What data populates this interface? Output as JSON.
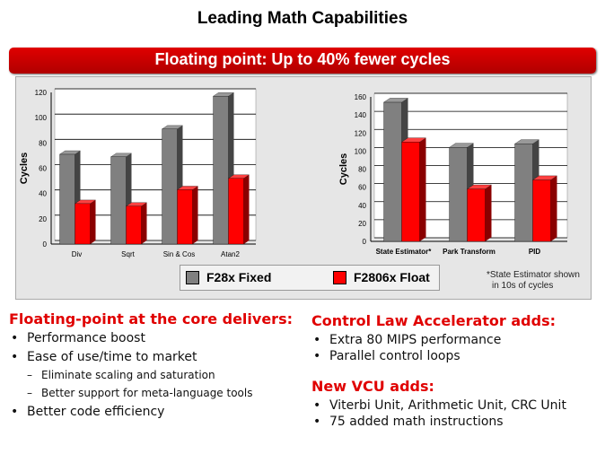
{
  "title": "Leading Math Capabilities",
  "banner": "Floating point:  Up to 40% fewer cycles",
  "legend": {
    "fixed": "F28x Fixed",
    "float": "F2806x Float"
  },
  "colors": {
    "fixed": "#808080",
    "float": "#ff0000",
    "accent": "#e00000"
  },
  "footnote": [
    "*State Estimator shown",
    "in 10s of cycles"
  ],
  "chart_data": [
    {
      "type": "bar",
      "ylabel": "Cycles",
      "ylim": [
        0,
        120
      ],
      "yticks": [
        0,
        20,
        40,
        60,
        80,
        100,
        120
      ],
      "categories": [
        "Div",
        "Sqrt",
        "Sin & Cos",
        "Atan2"
      ],
      "series": [
        {
          "name": "F28x Fixed",
          "values": [
            71,
            69,
            91,
            117
          ]
        },
        {
          "name": "F2806x Float",
          "values": [
            32,
            30,
            43,
            52
          ]
        }
      ]
    },
    {
      "type": "bar",
      "ylabel": "Cycles",
      "ylim": [
        0,
        160
      ],
      "yticks": [
        0,
        20,
        40,
        60,
        80,
        100,
        120,
        140,
        160
      ],
      "categories": [
        "State Estimator*",
        "Park Transform",
        "PID"
      ],
      "series": [
        {
          "name": "F28x Fixed",
          "values": [
            154,
            104,
            108
          ]
        },
        {
          "name": "F2806x Float",
          "values": [
            110,
            58,
            68
          ]
        }
      ]
    }
  ],
  "left": {
    "heading": "Floating-point  at the core delivers:",
    "items": [
      {
        "text": "Performance boost"
      },
      {
        "text": "Ease of use/time to market",
        "sub": [
          "Eliminate  scaling and saturation",
          "Better support  for meta-language  tools"
        ]
      },
      {
        "text": "Better code efficiency"
      }
    ]
  },
  "right": {
    "heading1": "Control Law Accelerator  adds:",
    "items1": [
      "Extra 80 MIPS performance",
      "Parallel  control loops"
    ],
    "heading2": "New VCU adds:",
    "items2": [
      "Viterbi Unit, Arithmetic Unit, CRC Unit",
      "75 added math instructions"
    ]
  }
}
